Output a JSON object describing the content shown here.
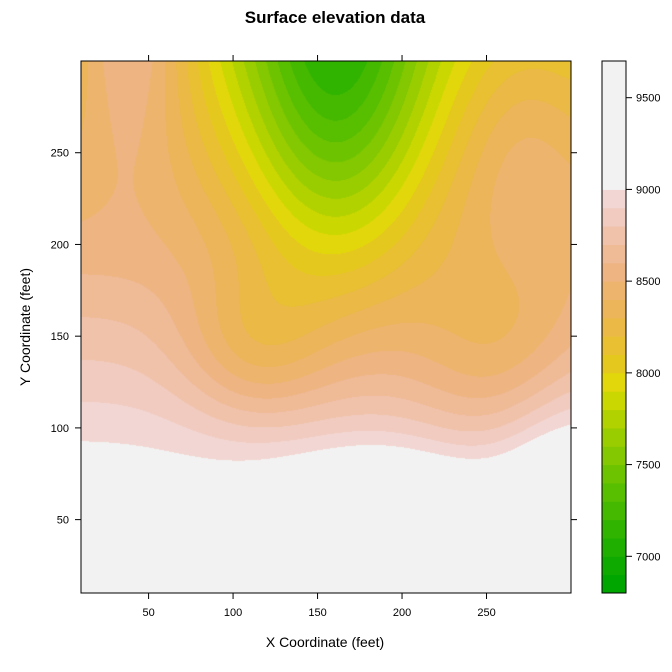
{
  "chart_data": {
    "type": "heatmap",
    "subtype": "filled-contour",
    "title": "Surface elevation data",
    "xlabel": "X Coordinate (feet)",
    "ylabel": "Y Coordinate (feet)",
    "xlim": [
      10,
      300
    ],
    "ylim": [
      10,
      300
    ],
    "x_ticks": [
      50,
      100,
      150,
      200,
      250
    ],
    "y_ticks": [
      50,
      100,
      150,
      200,
      250
    ],
    "colorbar": {
      "position": "right",
      "levels": [
        6800,
        6900,
        7000,
        7100,
        7200,
        7300,
        7400,
        7500,
        7600,
        7700,
        7800,
        7900,
        8000,
        8100,
        8200,
        8300,
        8400,
        8500,
        8600,
        8700,
        8800,
        8900,
        9000,
        9100,
        9200,
        9300,
        9400,
        9500,
        9600,
        9700
      ],
      "tick_values": [
        7000,
        7500,
        8000,
        8500,
        9000,
        9500
      ],
      "colors": [
        "#00A600",
        "#0FAA00",
        "#1FAF00",
        "#31B400",
        "#44B900",
        "#58BE00",
        "#6DC300",
        "#83C800",
        "#9ACD00",
        "#B2D200",
        "#CBD700",
        "#E2D70A",
        "#E5C81E",
        "#E8C032",
        "#EAB946",
        "#ECB55A",
        "#EDB46E",
        "#EEB582",
        "#EFBA96",
        "#F0C2AA",
        "#F1CBBF",
        "#F2D6D3",
        "#F2F2F2",
        "#F2F2F2",
        "#F2F2F2",
        "#F2F2F2",
        "#F2F2F2",
        "#F2F2F2",
        "#F2F2F2"
      ]
    },
    "grid": false,
    "surface_features": [
      {
        "kind": "low",
        "x": 160,
        "y": 290,
        "value": 6950,
        "spread_x": 30,
        "spread_y": 55
      },
      {
        "kind": "ridge",
        "x": 30,
        "y": 290,
        "value": 8700
      },
      {
        "kind": "high",
        "x": 10,
        "y": 15,
        "value": 9500
      },
      {
        "kind": "high",
        "x": 190,
        "y": 40,
        "value": 9400
      },
      {
        "kind": "trough",
        "x": 270,
        "y": 100,
        "value": 8100
      }
    ]
  }
}
